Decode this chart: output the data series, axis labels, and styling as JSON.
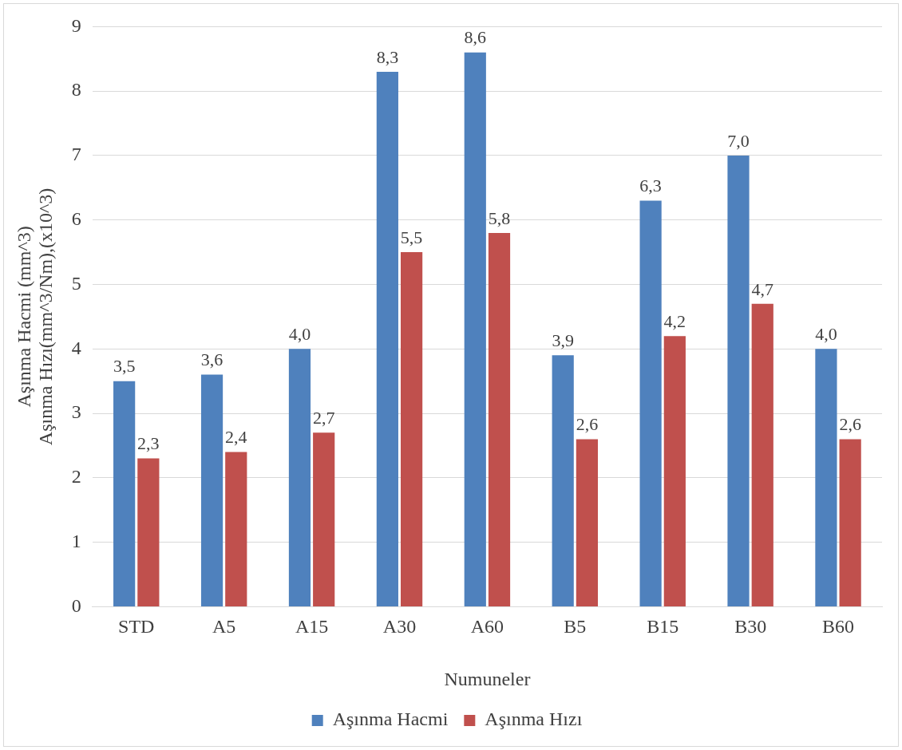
{
  "chart_data": {
    "type": "bar",
    "xlabel": "Numuneler",
    "ylabel": "Aşınma Hacmi (mm^3)\nAşınma Hızı(mm^3/Nm),(x10^3)",
    "categories": [
      "STD",
      "A5",
      "A15",
      "A30",
      "A60",
      "B5",
      "B15",
      "B30",
      "B60"
    ],
    "series": [
      {
        "name": "Aşınma Hacmi",
        "color": "#4f81bd",
        "values": [
          3.5,
          3.6,
          4.0,
          8.3,
          8.6,
          3.9,
          6.3,
          7.0,
          4.0
        ],
        "value_labels": [
          "3,5",
          "3,6",
          "4,0",
          "8,3",
          "8,6",
          "3,9",
          "6,3",
          "7,0",
          "4,0"
        ]
      },
      {
        "name": "Aşınma Hızı",
        "color": "#c0504d",
        "values": [
          2.3,
          2.4,
          2.7,
          5.5,
          5.8,
          2.6,
          4.2,
          4.7,
          2.6
        ],
        "value_labels": [
          "2,3",
          "2,4",
          "2,7",
          "5,5",
          "5,8",
          "2,6",
          "4,2",
          "4,7",
          "2,6"
        ]
      }
    ],
    "ylim": [
      0,
      9
    ],
    "yticks": [
      0,
      1,
      2,
      3,
      4,
      5,
      6,
      7,
      8,
      9
    ],
    "grid": "y",
    "legend": "bottom"
  }
}
